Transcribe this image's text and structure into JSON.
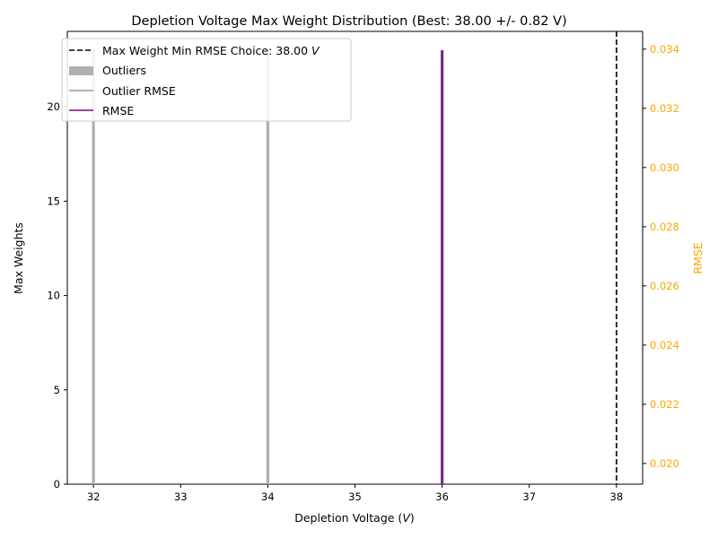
{
  "chart_data": {
    "type": "bar",
    "title": "Depletion Voltage Max Weight Distribution (Best: 38.00 +/- 0.82 V)",
    "xlabel_main": "Depletion Voltage (",
    "xlabel_unit": "V",
    "xlabel_close": ")",
    "ylabel": "Max Weights",
    "y2label": "RMSE",
    "xlim": [
      31.7,
      38.3
    ],
    "ylim": [
      0,
      24
    ],
    "y2lim": [
      0.0193,
      0.0346
    ],
    "xticks": [
      "32",
      "33",
      "34",
      "35",
      "36",
      "37",
      "38"
    ],
    "yticks": [
      "0",
      "5",
      "10",
      "15",
      "20"
    ],
    "y2ticks": [
      "0.020",
      "0.022",
      "0.024",
      "0.026",
      "0.028",
      "0.030",
      "0.032",
      "0.034"
    ],
    "outlier_bars": [
      {
        "x": 32,
        "value": 23
      },
      {
        "x": 34,
        "value": 23
      }
    ],
    "rmse_bars": [
      {
        "x": 36,
        "value": 23
      }
    ],
    "best_choice_x": 38,
    "colors": {
      "outlier": "#b0b0b0",
      "rmse": "#7a2a8a",
      "choice": "#000000",
      "y2axis": "#ffa500",
      "axis": "#000000"
    },
    "legend": {
      "placement": "top-left",
      "entries": [
        {
          "label_main": "Max Weight Min RMSE Choice: 38.00 ",
          "label_unit": "V",
          "style": "dashed-line"
        },
        {
          "label_main": "Outliers",
          "label_unit": "",
          "style": "patch"
        },
        {
          "label_main": "Outlier RMSE",
          "label_unit": "",
          "style": "gray-line"
        },
        {
          "label_main": "RMSE",
          "label_unit": "",
          "style": "purple-line"
        }
      ]
    }
  }
}
